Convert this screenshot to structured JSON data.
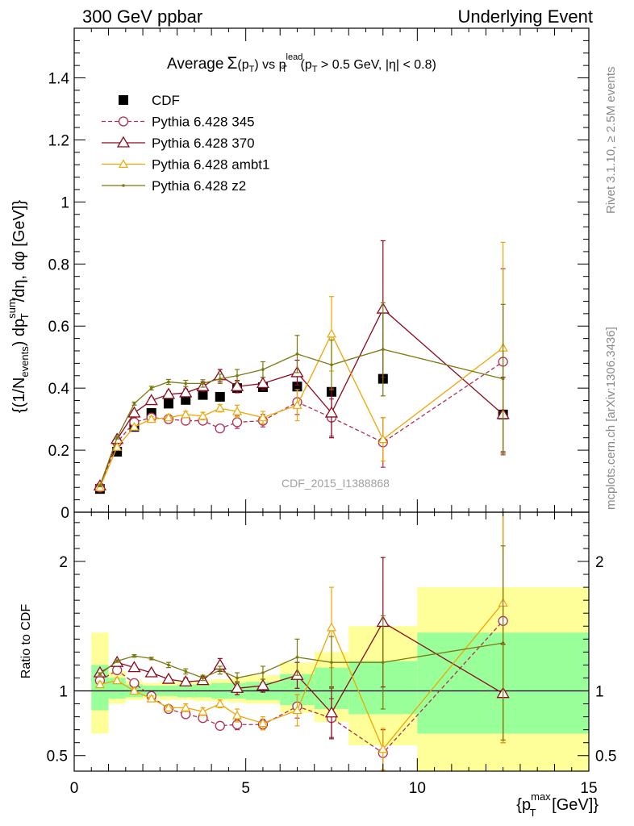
{
  "header": {
    "left": "300 GeV ppbar",
    "right": "Underlying Event"
  },
  "side_text": {
    "rivet": "Rivet 3.1.10, ≥ 2.5M events",
    "mcplots": "mcplots.cern.ch [arXiv:1306.3436]"
  },
  "chart_data": [
    {
      "type": "scatter",
      "panel": "main",
      "title_parts": {
        "average": "Average",
        "sigma": "Σ",
        "pt_open": "(p",
        "pt_sub": "T",
        "pt_close": ")",
        "vs": " vs p",
        "lead_sup": "lead",
        "lead_sub": "T",
        "cut_open": " (p",
        "cut_sub": "T",
        "cut_rest": " > 0.5 GeV, |η| < 0.8)"
      },
      "ylabel_parts": {
        "p1": "{(1/N",
        "sub1": "events",
        "p2": ") dp",
        "sup": "sum",
        "sub2": "T",
        "p3": "/dη, dφ [GeV]}"
      },
      "watermark": "CDF_2015_I1388868",
      "ylim": [
        0,
        1.56
      ],
      "yticks": [
        0,
        0.2,
        0.4,
        0.6,
        0.8,
        1,
        1.2,
        1.4
      ],
      "ytick_labels": [
        "0",
        "0.2",
        "0.4",
        "0.6",
        "0.8",
        "1",
        "1.2",
        "1.4"
      ],
      "x": [
        0.75,
        1.25,
        1.75,
        2.25,
        2.75,
        3.25,
        3.75,
        4.25,
        4.75,
        5.5,
        6.5,
        7.5,
        9,
        12.5
      ],
      "series": [
        {
          "name": "CDF",
          "color": "#000000",
          "marker": "square",
          "x": [
            0.75,
            1.25,
            1.75,
            2.25,
            2.75,
            3.25,
            3.75,
            4.25,
            4.75,
            5.5,
            6.5,
            7.5,
            9,
            12.5
          ],
          "values": [
            0.075,
            0.195,
            0.275,
            0.32,
            0.35,
            0.362,
            0.378,
            0.372,
            0.4,
            0.403,
            0.405,
            0.388,
            0.43,
            0.315
          ],
          "err": [
            0,
            0,
            0,
            0,
            0,
            0,
            0,
            0,
            0,
            0,
            0,
            0,
            0,
            0
          ]
        },
        {
          "name": "Pythia 6.428 345",
          "color": "#b03050",
          "marker": "circle",
          "dashed": true,
          "x": [
            0.75,
            1.25,
            1.75,
            2.25,
            2.75,
            3.25,
            3.75,
            4.25,
            4.75,
            5.5,
            6.5,
            7.5,
            9,
            12.5
          ],
          "values": [
            0.08,
            0.225,
            0.29,
            0.305,
            0.3,
            0.295,
            0.295,
            0.27,
            0.29,
            0.295,
            0.355,
            0.305,
            0.225,
            0.485
          ],
          "err": [
            0.005,
            0.005,
            0.005,
            0.01,
            0.01,
            0.012,
            0.012,
            0.012,
            0.02,
            0.02,
            0.04,
            0.06,
            0.08,
            0.3
          ]
        },
        {
          "name": "Pythia 6.428 370",
          "color": "#8b0a1e",
          "marker": "triangle",
          "x": [
            0.75,
            1.25,
            1.75,
            2.25,
            2.75,
            3.25,
            3.75,
            4.25,
            4.75,
            5.5,
            6.5,
            7.5,
            9,
            12.5
          ],
          "values": [
            0.085,
            0.235,
            0.32,
            0.36,
            0.38,
            0.385,
            0.405,
            0.44,
            0.405,
            0.415,
            0.45,
            0.32,
            0.655,
            0.315
          ],
          "err": [
            0.005,
            0.006,
            0.008,
            0.01,
            0.01,
            0.012,
            0.015,
            0.02,
            0.02,
            0.02,
            0.04,
            0.08,
            0.22,
            0.12
          ]
        },
        {
          "name": "Pythia 6.428 ambt1",
          "color": "#f0a500",
          "marker": "triangle-small",
          "x": [
            0.75,
            1.25,
            1.75,
            2.25,
            2.75,
            3.25,
            3.75,
            4.25,
            4.75,
            5.5,
            6.5,
            7.5,
            9,
            12.5
          ],
          "values": [
            0.08,
            0.21,
            0.275,
            0.3,
            0.305,
            0.315,
            0.31,
            0.335,
            0.325,
            0.305,
            0.345,
            0.575,
            0.235,
            0.53
          ],
          "err": [
            0.004,
            0.005,
            0.006,
            0.008,
            0.01,
            0.01,
            0.012,
            0.012,
            0.02,
            0.02,
            0.05,
            0.12,
            0.07,
            0.34
          ]
        },
        {
          "name": "Pythia 6.428 z2",
          "color": "#7a7a10",
          "marker": "dot",
          "x": [
            0.75,
            1.25,
            1.75,
            2.25,
            2.75,
            3.25,
            3.75,
            4.25,
            4.75,
            5.5,
            6.5,
            7.5,
            9,
            12.5
          ],
          "values": [
            0.085,
            0.24,
            0.35,
            0.4,
            0.42,
            0.415,
            0.415,
            0.43,
            0.44,
            0.46,
            0.51,
            0.475,
            0.525,
            0.43
          ],
          "err": [
            0.003,
            0.004,
            0.005,
            0.006,
            0.008,
            0.01,
            0.012,
            0.015,
            0.02,
            0.025,
            0.06,
            0.08,
            0.15,
            0.24
          ]
        }
      ]
    },
    {
      "type": "scatter",
      "panel": "ratio",
      "ylabel": "Ratio to CDF",
      "xlabel_parts": {
        "open": "{p",
        "sup": "max",
        "sub": "T",
        "close": " [GeV]}"
      },
      "xlim": [
        0,
        15
      ],
      "xticks": [
        0,
        5,
        10,
        15
      ],
      "xtick_labels": [
        "0",
        "5",
        "10",
        "15"
      ],
      "ylim": [
        0.38,
        2.38
      ],
      "yticks": [
        0.5,
        1,
        2
      ],
      "ytick_labels": [
        "0.5",
        "1",
        "2"
      ],
      "bands": [
        {
          "x0": 0.5,
          "x1": 1.0,
          "inner": [
            0.85,
            1.2
          ],
          "outer": [
            0.67,
            1.45
          ]
        },
        {
          "x0": 1.0,
          "x1": 1.5,
          "inner": [
            0.94,
            1.1
          ],
          "outer": [
            0.9,
            1.15
          ]
        },
        {
          "x0": 1.5,
          "x1": 2.0,
          "inner": [
            0.95,
            1.05
          ],
          "outer": [
            0.93,
            1.08
          ]
        },
        {
          "x0": 2.0,
          "x1": 2.5,
          "inner": [
            0.96,
            1.04
          ],
          "outer": [
            0.94,
            1.06
          ]
        },
        {
          "x0": 2.5,
          "x1": 3.0,
          "inner": [
            0.96,
            1.04
          ],
          "outer": [
            0.93,
            1.07
          ]
        },
        {
          "x0": 3.0,
          "x1": 3.5,
          "inner": [
            0.95,
            1.05
          ],
          "outer": [
            0.93,
            1.07
          ]
        },
        {
          "x0": 3.5,
          "x1": 4.0,
          "inner": [
            0.95,
            1.05
          ],
          "outer": [
            0.92,
            1.08
          ]
        },
        {
          "x0": 4.0,
          "x1": 4.5,
          "inner": [
            0.94,
            1.06
          ],
          "outer": [
            0.92,
            1.09
          ]
        },
        {
          "x0": 4.5,
          "x1": 5.0,
          "inner": [
            0.94,
            1.06
          ],
          "outer": [
            0.91,
            1.1
          ]
        },
        {
          "x0": 5.0,
          "x1": 6.0,
          "inner": [
            0.93,
            1.07
          ],
          "outer": [
            0.9,
            1.12
          ]
        },
        {
          "x0": 6.0,
          "x1": 7.0,
          "inner": [
            0.89,
            1.13
          ],
          "outer": [
            0.83,
            1.22
          ]
        },
        {
          "x0": 7.0,
          "x1": 8.0,
          "inner": [
            0.86,
            1.18
          ],
          "outer": [
            0.76,
            1.3
          ]
        },
        {
          "x0": 8.0,
          "x1": 10.0,
          "inner": [
            0.82,
            1.23
          ],
          "outer": [
            0.58,
            1.5
          ]
        },
        {
          "x0": 10.0,
          "x1": 15.0,
          "inner": [
            0.67,
            1.45
          ],
          "outer": [
            0.33,
            1.8
          ]
        }
      ],
      "series": [
        {
          "name": "Pythia 6.428 345",
          "color": "#b03050",
          "marker": "circle",
          "dashed": true,
          "x": [
            0.75,
            1.25,
            1.75,
            2.25,
            2.75,
            3.25,
            3.75,
            4.25,
            4.75,
            5.5,
            6.5,
            7.5,
            9,
            12.5
          ],
          "values": [
            1.08,
            1.16,
            1.06,
            0.96,
            0.86,
            0.82,
            0.79,
            0.73,
            0.74,
            0.74,
            0.88,
            0.79,
            0.52,
            1.54
          ],
          "err": [
            0.02,
            0.02,
            0.02,
            0.02,
            0.02,
            0.02,
            0.02,
            0.03,
            0.04,
            0.04,
            0.09,
            0.15,
            0.18,
            0.92
          ]
        },
        {
          "name": "Pythia 6.428 370",
          "color": "#8b0a1e",
          "marker": "triangle",
          "x": [
            0.75,
            1.25,
            1.75,
            2.25,
            2.75,
            3.25,
            3.75,
            4.25,
            4.75,
            5.5,
            6.5,
            7.5,
            9,
            12.5
          ],
          "values": [
            1.14,
            1.22,
            1.18,
            1.14,
            1.09,
            1.07,
            1.08,
            1.2,
            1.02,
            1.04,
            1.12,
            0.83,
            1.53,
            0.98
          ],
          "err": [
            0.02,
            0.02,
            0.02,
            0.02,
            0.02,
            0.03,
            0.03,
            0.05,
            0.05,
            0.05,
            0.1,
            0.2,
            0.5,
            0.38
          ]
        },
        {
          "name": "Pythia 6.428 ambt1",
          "color": "#f0a500",
          "marker": "triangle-small",
          "x": [
            0.75,
            1.25,
            1.75,
            2.25,
            2.75,
            3.25,
            3.75,
            4.25,
            4.75,
            5.5,
            6.5,
            7.5,
            9,
            12.5
          ],
          "values": [
            1.05,
            1.08,
            1.0,
            0.94,
            0.87,
            0.87,
            0.84,
            0.9,
            0.81,
            0.75,
            0.85,
            1.49,
            0.55,
            1.68
          ],
          "err": [
            0.02,
            0.02,
            0.02,
            0.02,
            0.02,
            0.03,
            0.03,
            0.03,
            0.05,
            0.05,
            0.12,
            0.31,
            0.16,
            1.08
          ]
        },
        {
          "name": "Pythia 6.428 z2",
          "color": "#7a7a10",
          "marker": "dot",
          "x": [
            0.75,
            1.25,
            1.75,
            2.25,
            2.75,
            3.25,
            3.75,
            4.25,
            4.75,
            5.5,
            6.5,
            7.5,
            9,
            12.5
          ],
          "values": [
            1.13,
            1.23,
            1.27,
            1.25,
            1.2,
            1.15,
            1.1,
            1.16,
            1.1,
            1.14,
            1.26,
            1.22,
            1.22,
            1.37
          ],
          "err": [
            0.01,
            0.01,
            0.01,
            0.01,
            0.02,
            0.02,
            0.02,
            0.03,
            0.04,
            0.05,
            0.14,
            0.2,
            0.36,
            0.75
          ]
        }
      ]
    }
  ]
}
